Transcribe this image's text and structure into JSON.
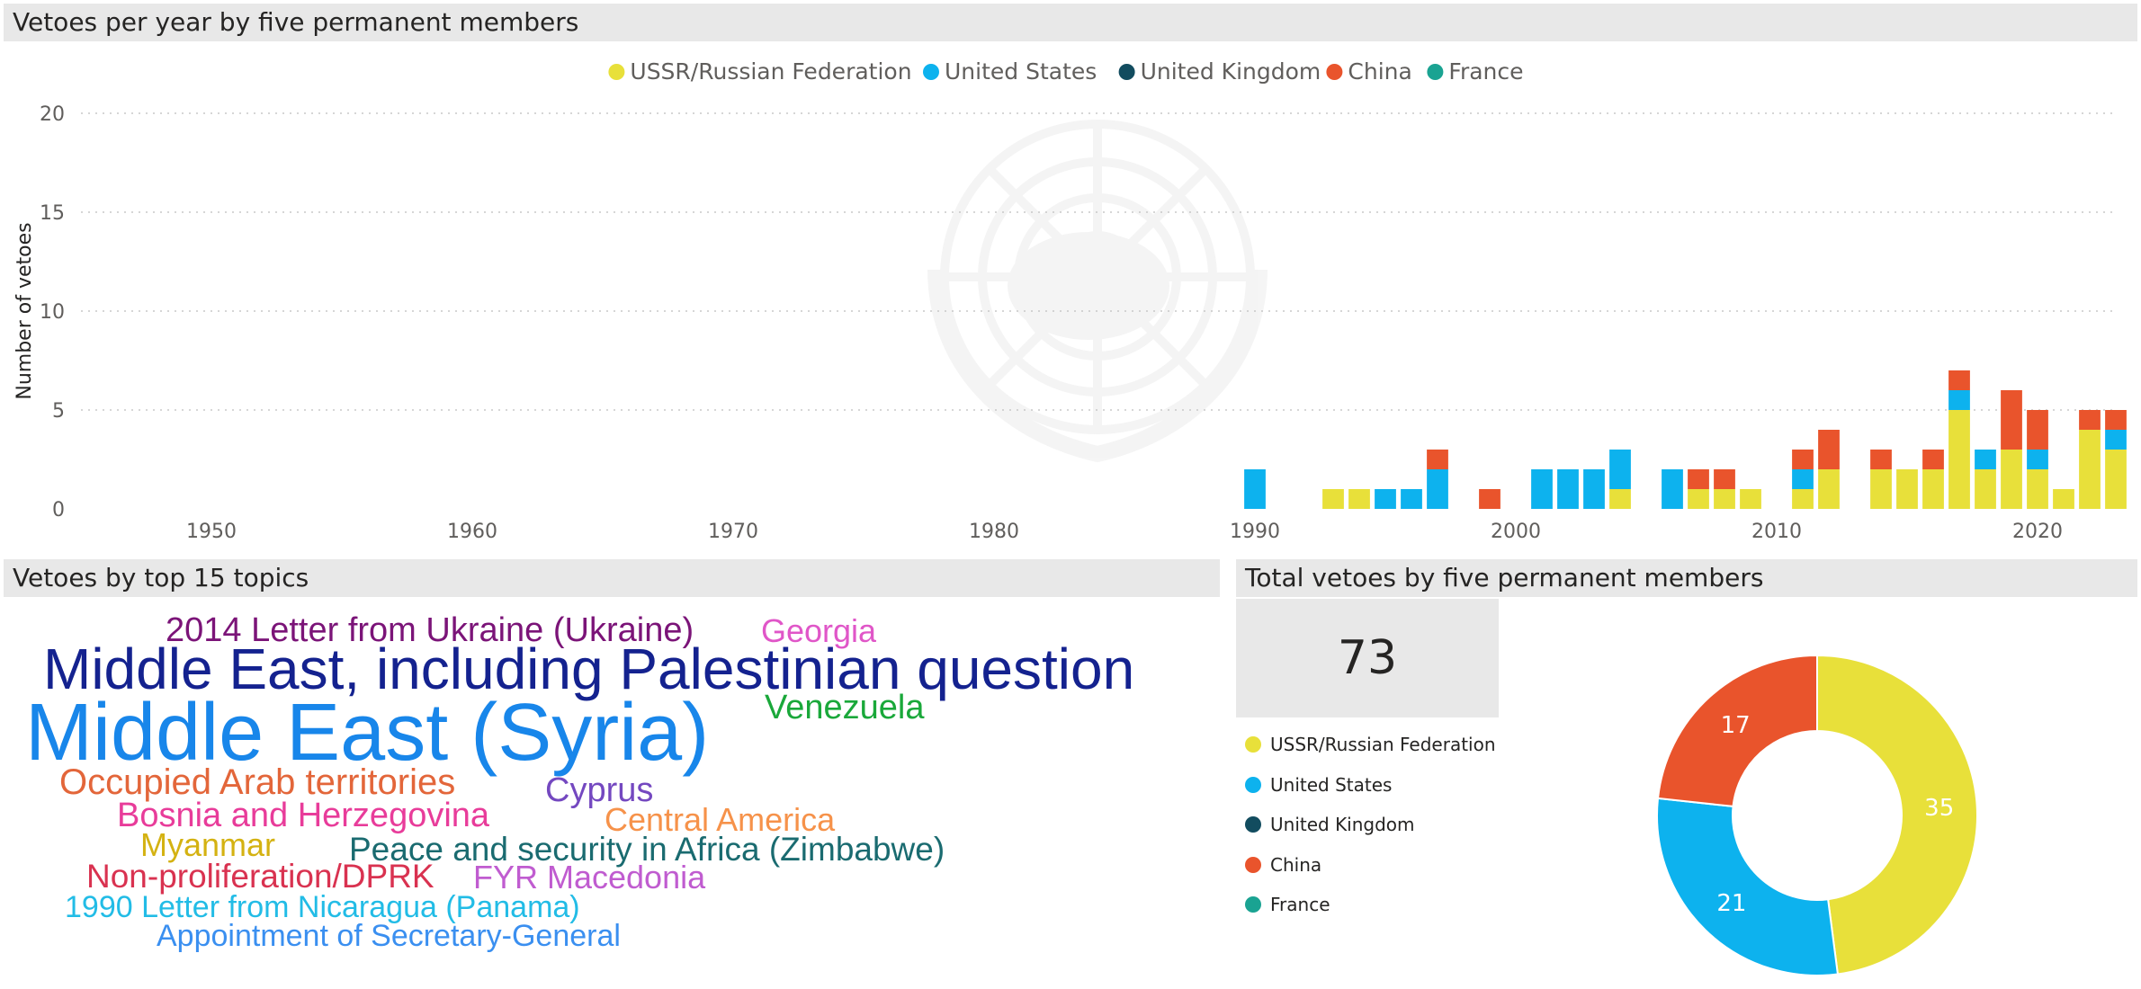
{
  "colors": {
    "ussr": "#e8e03a",
    "us": "#0db2ee",
    "uk": "#124c5f",
    "china": "#e9542c",
    "france": "#1aa392",
    "grid": "#c8c8c8",
    "axis_text": "#605e5c"
  },
  "chart_data": [
    {
      "type": "bar",
      "stacked": true,
      "title": "Vetoes per year by five permanent members",
      "xlabel": "",
      "ylabel": "Number of vetoes",
      "ylim": [
        0,
        20
      ],
      "yticks": [
        0,
        5,
        10,
        15,
        20
      ],
      "xlim": [
        1945,
        2023
      ],
      "xticks": [
        1950,
        1960,
        1970,
        1980,
        1990,
        2000,
        2010,
        2020
      ],
      "grid": true,
      "legend_position": "top-center",
      "x": [
        1990,
        1993,
        1994,
        1995,
        1996,
        1997,
        1999,
        2001,
        2002,
        2003,
        2004,
        2006,
        2007,
        2008,
        2009,
        2011,
        2012,
        2014,
        2015,
        2016,
        2017,
        2018,
        2019,
        2020,
        2021,
        2022,
        2023
      ],
      "series": [
        {
          "name": "USSR/Russian Federation",
          "color_key": "ussr",
          "values": [
            0,
            1,
            1,
            0,
            0,
            0,
            0,
            0,
            0,
            0,
            1,
            0,
            1,
            1,
            1,
            1,
            2,
            2,
            2,
            2,
            5,
            2,
            3,
            2,
            1,
            4,
            3
          ]
        },
        {
          "name": "United States",
          "color_key": "us",
          "values": [
            2,
            0,
            0,
            1,
            1,
            2,
            0,
            2,
            2,
            2,
            2,
            2,
            0,
            0,
            0,
            1,
            0,
            0,
            0,
            0,
            1,
            1,
            0,
            1,
            0,
            0,
            1
          ]
        },
        {
          "name": "United Kingdom",
          "color_key": "uk",
          "values": [
            0,
            0,
            0,
            0,
            0,
            0,
            0,
            0,
            0,
            0,
            0,
            0,
            0,
            0,
            0,
            0,
            0,
            0,
            0,
            0,
            0,
            0,
            0,
            0,
            0,
            0,
            0
          ]
        },
        {
          "name": "China",
          "color_key": "china",
          "values": [
            0,
            0,
            0,
            0,
            0,
            1,
            1,
            0,
            0,
            0,
            0,
            0,
            1,
            1,
            0,
            1,
            2,
            1,
            0,
            1,
            1,
            0,
            3,
            2,
            0,
            1,
            1
          ]
        },
        {
          "name": "France",
          "color_key": "france",
          "values": [
            0,
            0,
            0,
            0,
            0,
            0,
            0,
            0,
            0,
            0,
            0,
            0,
            0,
            0,
            0,
            0,
            0,
            0,
            0,
            0,
            0,
            0,
            0,
            0,
            0,
            0,
            0
          ]
        }
      ]
    },
    {
      "type": "pie",
      "donut": true,
      "title": "Total vetoes by five permanent members",
      "total": "73",
      "legend_position": "left",
      "labels": [
        "USSR/Russian Federation",
        "United States",
        "United Kingdom",
        "China",
        "France"
      ],
      "color_keys": [
        "ussr",
        "us",
        "uk",
        "china",
        "france"
      ],
      "values": [
        35,
        21,
        0,
        17,
        0
      ]
    }
  ],
  "wordcloud": {
    "title": "Vetoes by top 15 topics",
    "words": [
      {
        "text": "2014 Letter from Ukraine (Ukraine)",
        "color": "#7b1478"
      },
      {
        "text": "Georgia",
        "color": "#e056c8"
      },
      {
        "text": "Middle East, including Palestinian question",
        "color": "#14228f"
      },
      {
        "text": "Middle East (Syria)",
        "color": "#1886ea"
      },
      {
        "text": "Venezuela",
        "color": "#1aa83a"
      },
      {
        "text": "Occupied Arab territories",
        "color": "#e3663a"
      },
      {
        "text": "Cyprus",
        "color": "#7448c0"
      },
      {
        "text": "Bosnia and Herzegovina",
        "color": "#e83c9a"
      },
      {
        "text": "Central America",
        "color": "#f6924a"
      },
      {
        "text": "Myanmar",
        "color": "#d4b212"
      },
      {
        "text": "Peace and security in Africa (Zimbabwe)",
        "color": "#1a6b70"
      },
      {
        "text": "Non-proliferation/DPRK",
        "color": "#d93250"
      },
      {
        "text": "FYR Macedonia",
        "color": "#c05cd0"
      },
      {
        "text": "1990 Letter from Nicaragua (Panama)",
        "color": "#22bce6"
      },
      {
        "text": "Appointment of Secretary-General",
        "color": "#3a8ff0"
      }
    ]
  }
}
